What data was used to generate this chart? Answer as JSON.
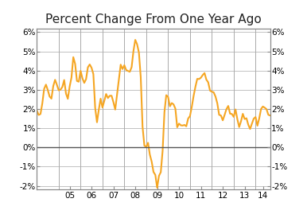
{
  "title": "Percent Change From One Year Ago",
  "ylim": [
    -2.2,
    6.2
  ],
  "yticks": [
    -2,
    -1,
    0,
    1,
    2,
    3,
    4,
    5,
    6
  ],
  "line_color": "#F5A623",
  "line_width": 1.5,
  "zero_line_color": "#555555",
  "grid_color": "#aaaaaa",
  "background_color": "#ffffff",
  "title_fontsize": 11,
  "tick_fontsize": 7.5,
  "values": [
    1.93,
    1.69,
    1.74,
    2.29,
    3.05,
    3.27,
    2.99,
    2.65,
    2.54,
    3.19,
    3.52,
    3.26,
    2.97,
    3.01,
    3.15,
    3.51,
    2.8,
    2.53,
    3.17,
    3.64,
    4.7,
    4.35,
    3.46,
    3.42,
    3.99,
    3.6,
    3.36,
    3.55,
    4.17,
    4.32,
    4.15,
    3.82,
    2.06,
    1.31,
    1.97,
    2.54,
    2.08,
    2.42,
    2.78,
    2.57,
    2.69,
    2.69,
    2.36,
    1.97,
    2.76,
    3.54,
    4.31,
    4.08,
    4.28,
    4.03,
    3.98,
    3.94,
    4.18,
    5.02,
    5.6,
    5.37,
    4.94,
    3.66,
    1.07,
    0.09,
    0.03,
    0.24,
    -0.38,
    -0.74,
    -1.28,
    -1.43,
    -2.1,
    -1.48,
    -1.29,
    -0.18,
    1.84,
    2.72,
    2.63,
    2.14,
    2.31,
    2.24,
    2.02,
    1.05,
    1.24,
    1.15,
    1.14,
    1.17,
    1.1,
    1.5,
    1.63,
    2.11,
    2.68,
    3.16,
    3.57,
    3.56,
    3.63,
    3.77,
    3.87,
    3.53,
    3.39,
    2.96,
    2.9,
    2.87,
    2.65,
    2.3,
    1.7,
    1.66,
    1.41,
    1.69,
    1.99,
    2.16,
    1.76,
    1.74,
    1.59,
    1.98,
    1.47,
    1.06,
    1.36,
    1.75,
    1.48,
    1.52,
    1.18,
    0.96,
    1.24,
    1.5,
    1.58,
    1.13,
    1.51,
    2.0,
    2.13,
    2.07,
    1.99,
    1.7,
    1.66
  ],
  "xtick_years": [
    "05",
    "06",
    "07",
    "08",
    "09",
    "10",
    "11",
    "12",
    "13",
    "14"
  ]
}
